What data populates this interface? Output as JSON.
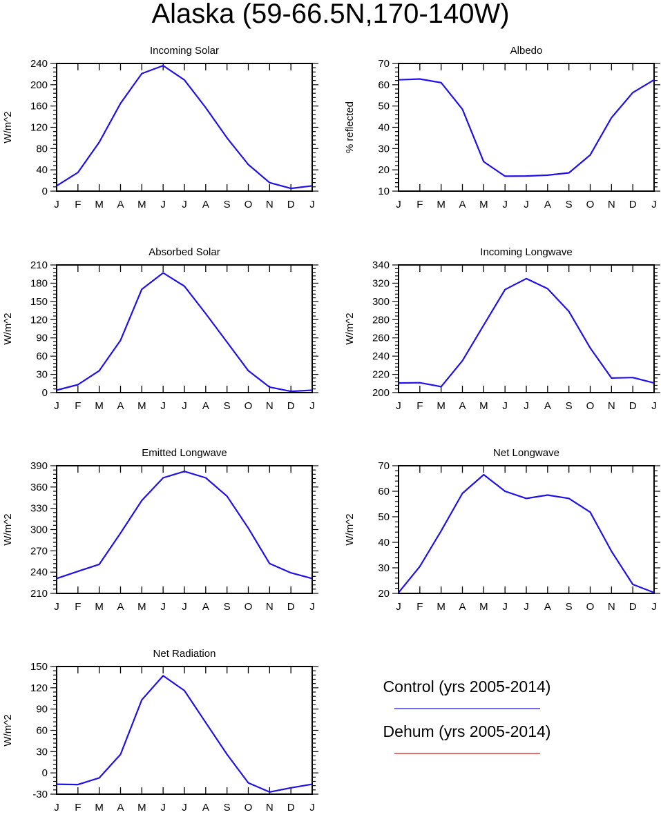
{
  "title": "Alaska (59-66.5N,170-140W)",
  "colors": {
    "control": "#1f10e6",
    "dehum": "#e01010"
  },
  "legend": [
    {
      "label": "Control (yrs 2005-2014)",
      "color": "#1f10e6"
    },
    {
      "label": "Dehum (yrs 2005-2014)",
      "color": "#e01010"
    }
  ],
  "chart_data": [
    {
      "type": "line",
      "title": "Incoming Solar",
      "ylabel": "W/m^2",
      "categories": [
        "J",
        "F",
        "M",
        "A",
        "M",
        "J",
        "J",
        "A",
        "S",
        "O",
        "N",
        "D",
        "J"
      ],
      "ylim": [
        0,
        240
      ],
      "yticks": [
        0,
        40,
        80,
        120,
        160,
        200,
        240
      ],
      "series": [
        {
          "values": [
            10,
            35,
            92,
            165,
            221,
            236,
            209,
            157,
            100,
            50,
            16,
            5,
            10
          ]
        }
      ]
    },
    {
      "type": "line",
      "title": "Albedo",
      "ylabel": "% reflected",
      "categories": [
        "J",
        "F",
        "M",
        "A",
        "M",
        "J",
        "J",
        "A",
        "S",
        "O",
        "N",
        "D",
        "J"
      ],
      "ylim": [
        10,
        70
      ],
      "yticks": [
        10,
        20,
        30,
        40,
        50,
        60,
        70
      ],
      "series": [
        {
          "values": [
            62.3,
            62.7,
            61,
            48.5,
            23.8,
            17,
            17.1,
            17.5,
            18.6,
            27,
            44.5,
            56.3,
            62.3
          ]
        }
      ]
    },
    {
      "type": "line",
      "title": "Absorbed Solar",
      "ylabel": "W/m^2",
      "categories": [
        "J",
        "F",
        "M",
        "A",
        "M",
        "J",
        "J",
        "A",
        "S",
        "O",
        "N",
        "D",
        "J"
      ],
      "ylim": [
        0,
        210
      ],
      "yticks": [
        0,
        30,
        60,
        90,
        120,
        150,
        180,
        210
      ],
      "series": [
        {
          "values": [
            4,
            13,
            36,
            86,
            170,
            197,
            175,
            130,
            83,
            36,
            9,
            2,
            4
          ]
        }
      ]
    },
    {
      "type": "line",
      "title": "Incoming Longwave",
      "ylabel": "W/m^2",
      "categories": [
        "J",
        "F",
        "M",
        "A",
        "M",
        "J",
        "J",
        "A",
        "S",
        "O",
        "N",
        "D",
        "J"
      ],
      "ylim": [
        200,
        340
      ],
      "yticks": [
        200,
        220,
        240,
        260,
        280,
        300,
        320,
        340
      ],
      "series": [
        {
          "values": [
            210.5,
            210.8,
            206.5,
            235,
            274,
            313,
            325,
            314,
            289,
            249,
            216,
            216.5,
            210.5
          ]
        }
      ]
    },
    {
      "type": "line",
      "title": "Emitted Longwave",
      "ylabel": "W/m^2",
      "categories": [
        "J",
        "F",
        "M",
        "A",
        "M",
        "J",
        "J",
        "A",
        "S",
        "O",
        "N",
        "D",
        "J"
      ],
      "ylim": [
        210,
        390
      ],
      "yticks": [
        210,
        240,
        270,
        300,
        330,
        360,
        390
      ],
      "series": [
        {
          "values": [
            231,
            241,
            251,
            295,
            341,
            373,
            382,
            373,
            347,
            302,
            252,
            239,
            231
          ]
        }
      ]
    },
    {
      "type": "line",
      "title": "Net Longwave",
      "ylabel": "W/m^2",
      "categories": [
        "J",
        "F",
        "M",
        "A",
        "M",
        "J",
        "J",
        "A",
        "S",
        "O",
        "N",
        "D",
        "J"
      ],
      "ylim": [
        20,
        70
      ],
      "yticks": [
        20,
        30,
        40,
        50,
        60,
        70
      ],
      "series": [
        {
          "values": [
            20.3,
            30.5,
            44.5,
            59.2,
            66.5,
            60,
            57.2,
            58.5,
            57.2,
            51.8,
            36.5,
            23.5,
            20.3
          ]
        }
      ]
    },
    {
      "type": "line",
      "title": "Net Radiation",
      "ylabel": "W/m^2",
      "categories": [
        "J",
        "F",
        "M",
        "A",
        "M",
        "J",
        "J",
        "A",
        "S",
        "O",
        "N",
        "D",
        "J"
      ],
      "ylim": [
        -30,
        150
      ],
      "yticks": [
        -30,
        0,
        30,
        60,
        90,
        120,
        150
      ],
      "series": [
        {
          "values": [
            -16,
            -16.5,
            -7,
            26,
            103,
            137,
            116,
            71,
            26,
            -14,
            -27,
            -21,
            -16
          ]
        }
      ]
    }
  ]
}
